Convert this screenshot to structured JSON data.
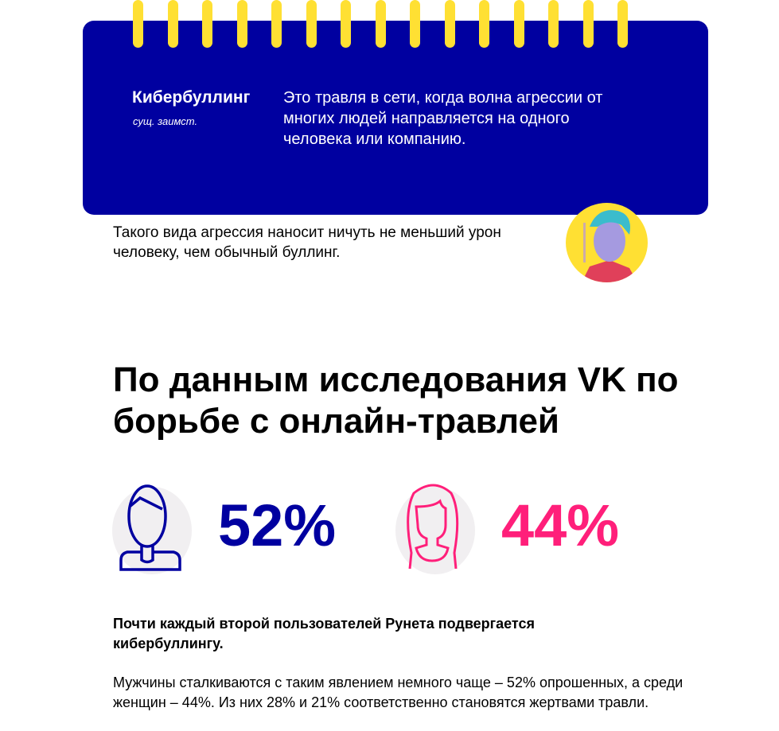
{
  "definition": {
    "term": "Кибербуллинг",
    "part_of_speech": "сущ. заимст.",
    "text": "Это травля в сети, когда волна агрессии от многих людей направляется на одного человека или компанию."
  },
  "note": "Такого вида агрессия наносит ничуть не меньший урон человеку, чем обычный буллинг.",
  "heading": "По данным исследования VK по борьбе с онлайн-травлей",
  "stats": [
    {
      "value": "52%",
      "color": "#0000a0",
      "icon": "man-icon"
    },
    {
      "value": "44%",
      "color": "#ff1f7a",
      "icon": "woman-icon"
    }
  ],
  "lead": "Почти каждый второй пользователей Рунета подвергается кибербуллингу.",
  "body": "Мужчины сталкиваются с таким явлением немного чаще – 52% опрошенных, а среди женщин – 44%. Из них 28% и 21% соответственно становятся жертвами травли.",
  "colors": {
    "card": "#0000a0",
    "rings": "#ffe033",
    "accent_pink": "#ff1f7a"
  }
}
